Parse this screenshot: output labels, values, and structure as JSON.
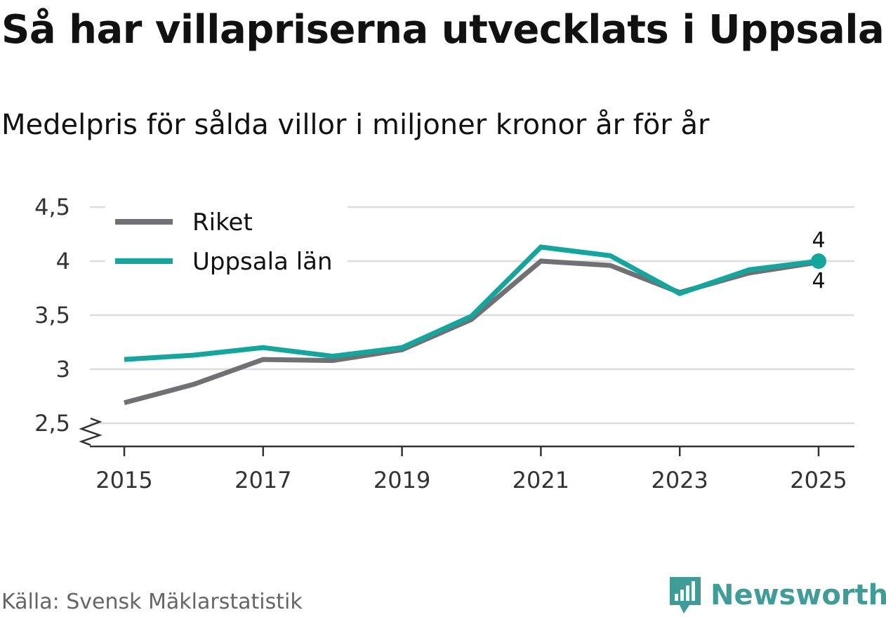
{
  "title": "Så har villapriserna utvecklats i Uppsala",
  "subtitle": "Medelpris för sålda villor i miljoner kronor år för år",
  "source": "Källa: Svensk Mäklarstatistik",
  "brand": {
    "name": "Newsworthy",
    "icon": "bar-chart-badge-icon"
  },
  "colors": {
    "riket": "#707075",
    "uppsala": "#14a59c",
    "grid": "#dddddd",
    "axis": "#333333",
    "brand": "#3f9c97"
  },
  "chart_data": {
    "type": "line",
    "title": "Så har villapriserna utvecklats i Uppsala",
    "subtitle": "Medelpris för sålda villor i miljoner kronor år för år",
    "xlabel": "",
    "ylabel": "",
    "x": [
      2015,
      2016,
      2017,
      2018,
      2019,
      2020,
      2021,
      2022,
      2023,
      2024,
      2025
    ],
    "xticks": [
      2015,
      2017,
      2019,
      2021,
      2023,
      2025
    ],
    "xtick_labels": [
      "2015",
      "2017",
      "2019",
      "2021",
      "2023",
      "2025"
    ],
    "ylim": [
      2.5,
      4.5
    ],
    "yticks": [
      2.5,
      3,
      3.5,
      4,
      4.5
    ],
    "ytick_labels": [
      "2,5",
      "3",
      "3,5",
      "4",
      "4,5"
    ],
    "axis_break": true,
    "grid": true,
    "legend_position": "top-left",
    "series": [
      {
        "name": "Riket",
        "color": "#707075",
        "values": [
          2.69,
          2.86,
          3.09,
          3.08,
          3.18,
          3.46,
          4.0,
          3.96,
          3.71,
          3.89,
          3.99
        ],
        "end_label": "4"
      },
      {
        "name": "Uppsala län",
        "color": "#14a59c",
        "values": [
          3.09,
          3.13,
          3.2,
          3.12,
          3.2,
          3.49,
          4.13,
          4.05,
          3.7,
          3.92,
          4.0
        ],
        "end_label": "4"
      }
    ]
  }
}
